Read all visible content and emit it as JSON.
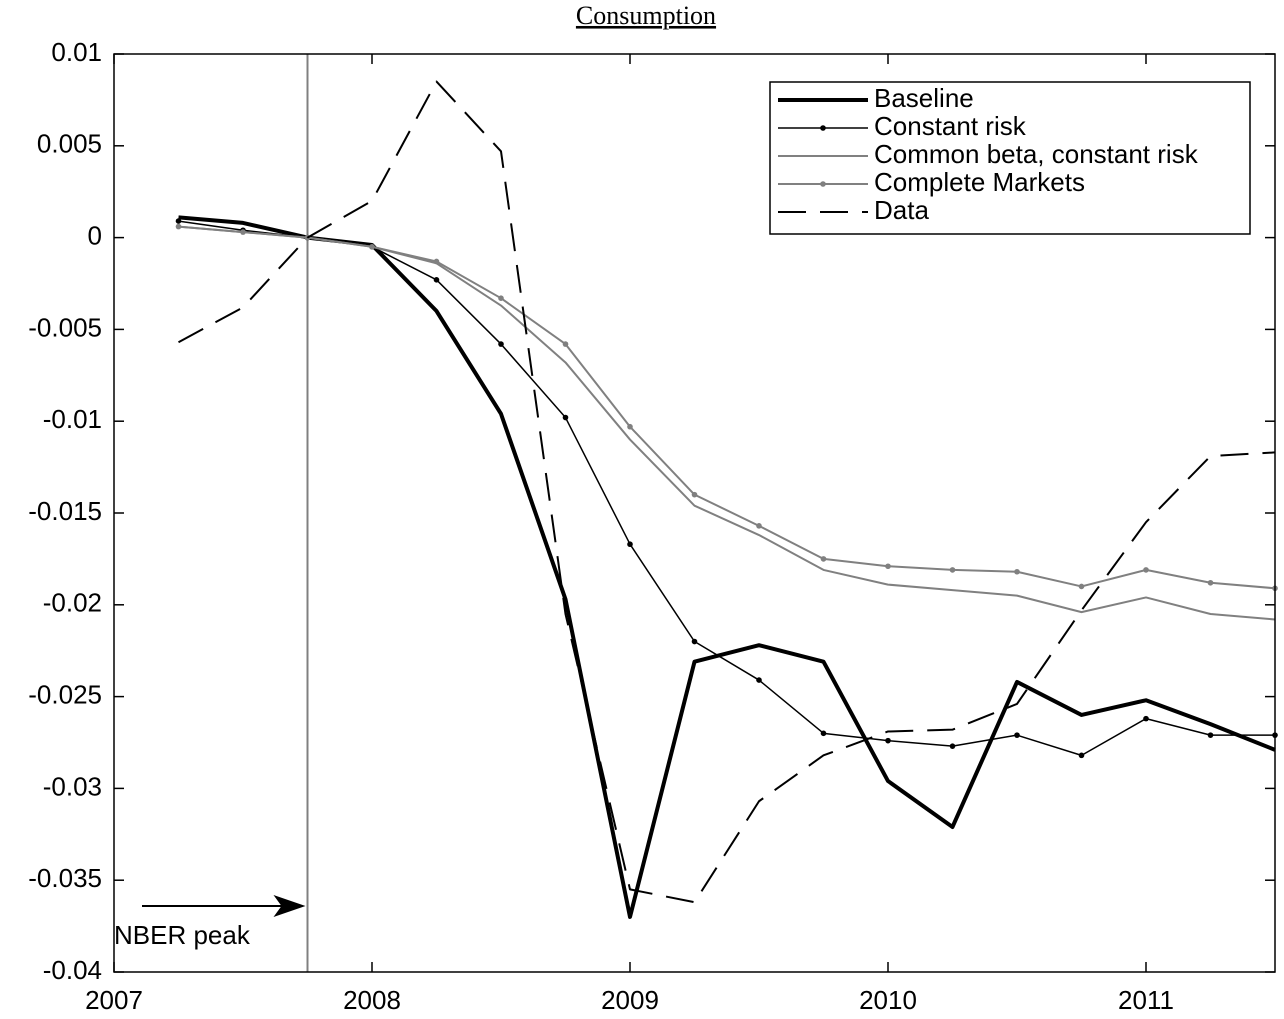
{
  "chart_data": {
    "type": "line",
    "title": "Consumption",
    "x": [
      2007.25,
      2007.5,
      2007.75,
      2008,
      2008.25,
      2008.5,
      2008.75,
      2009,
      2009.25,
      2009.5,
      2009.75,
      2010,
      2010.25,
      2010.5,
      2010.75,
      2011,
      2011.25,
      2011.5
    ],
    "xlim": [
      2007,
      2011.5
    ],
    "xticks": [
      2007,
      2008,
      2009,
      2010,
      2011
    ],
    "ylim": [
      -0.04,
      0.01
    ],
    "yticks": [
      -0.04,
      -0.035,
      -0.03,
      -0.025,
      -0.02,
      -0.015,
      -0.01,
      -0.005,
      0,
      0.005,
      0.01
    ],
    "legend": "top-right",
    "annotation": {
      "text": "NBER peak",
      "x": 2007.75,
      "color": "#808080"
    },
    "series": [
      {
        "name": "Baseline",
        "color": "#000000",
        "line_width": 4,
        "dash": "solid",
        "marker": false,
        "values": [
          0.0011,
          0.0008,
          0,
          -0.0004,
          -0.004,
          -0.0096,
          -0.0197,
          -0.037,
          -0.0231,
          -0.0222,
          -0.0231,
          -0.0296,
          -0.0321,
          -0.0242,
          -0.026,
          -0.0252,
          -0.0265,
          -0.0279
        ]
      },
      {
        "name": "Constant risk",
        "color": "#000000",
        "line_width": 1.5,
        "dash": "solid",
        "marker": true,
        "values": [
          0.0009,
          0.0004,
          0,
          -0.0005,
          -0.0023,
          -0.0058,
          -0.0098,
          -0.0167,
          -0.022,
          -0.0241,
          -0.027,
          -0.0274,
          -0.0277,
          -0.0271,
          -0.0282,
          -0.0262,
          -0.0271,
          -0.0271
        ]
      },
      {
        "name": "Common beta, constant risk",
        "color": "#808080",
        "line_width": 2,
        "dash": "solid",
        "marker": false,
        "values": [
          0.0006,
          0.0003,
          0,
          -0.0005,
          -0.0014,
          -0.0037,
          -0.0068,
          -0.011,
          -0.0146,
          -0.0162,
          -0.0181,
          -0.0189,
          -0.0192,
          -0.0195,
          -0.0204,
          -0.0196,
          -0.0205,
          -0.0208
        ]
      },
      {
        "name": "Complete Markets",
        "color": "#808080",
        "line_width": 2,
        "dash": "solid",
        "marker": true,
        "values": [
          0.0006,
          0.0003,
          0,
          -0.0005,
          -0.0013,
          -0.0033,
          -0.0058,
          -0.0103,
          -0.014,
          -0.0157,
          -0.0175,
          -0.0179,
          -0.0181,
          -0.0182,
          -0.019,
          -0.0181,
          -0.0188,
          -0.0191
        ]
      },
      {
        "name": "Data",
        "color": "#000000",
        "line_width": 2,
        "dash": "dashed",
        "marker": false,
        "values": [
          -0.0057,
          -0.0038,
          0,
          0.002,
          0.0085,
          0.0047,
          -0.0205,
          -0.0355,
          -0.0362,
          -0.0307,
          -0.0282,
          -0.0269,
          -0.0268,
          -0.0254,
          -0.0203,
          -0.0155,
          -0.0119,
          -0.0117
        ]
      }
    ]
  }
}
